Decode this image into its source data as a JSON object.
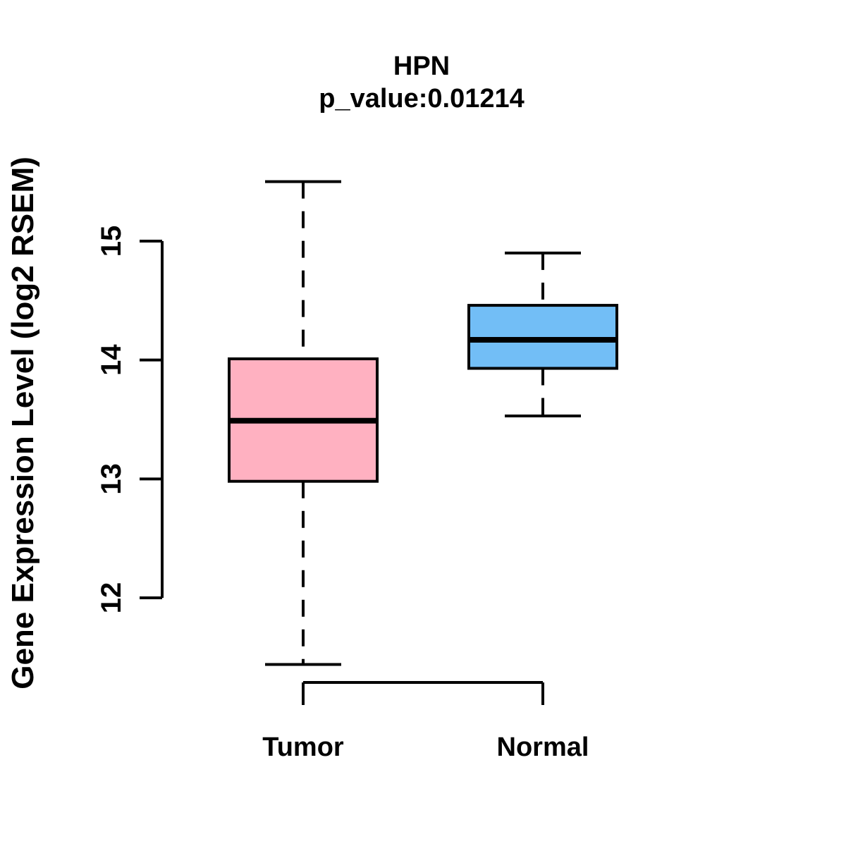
{
  "figure": {
    "title": "HPN",
    "subtitle": "p_value:0.01214",
    "y_axis_label": "Gene Expression Level (log2 RSEM)"
  },
  "chart_data": {
    "type": "boxplot",
    "title": "HPN",
    "subtitle": "p_value:0.01214",
    "ylabel": "Gene Expression Level (log2 RSEM)",
    "xlabel": "",
    "categories": [
      "Tumor",
      "Normal"
    ],
    "series": [
      {
        "name": "Tumor",
        "fill_color": "#ffb1c1",
        "whisker_low": 11.44,
        "q1": 12.98,
        "median": 13.49,
        "q3": 14.01,
        "whisker_high": 15.5
      },
      {
        "name": "Normal",
        "fill_color": "#72bef6",
        "whisker_low": 13.53,
        "q1": 13.93,
        "median": 14.17,
        "q3": 14.46,
        "whisker_high": 14.9
      }
    ],
    "yticks": [
      12,
      13,
      14,
      15
    ],
    "ylim": [
      11.3,
      15.6
    ],
    "grid": false,
    "legend": "none",
    "whisker_style": "dashed",
    "box_border_color": "#000000",
    "median_color": "#000000",
    "axis_color": "#000000"
  }
}
